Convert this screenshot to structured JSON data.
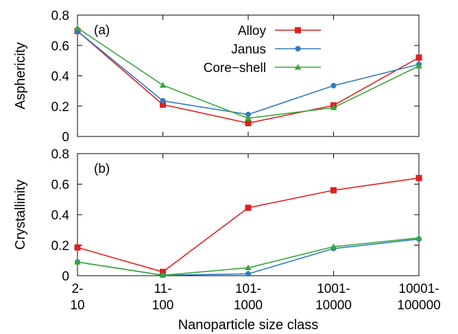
{
  "chart_data": [
    {
      "type": "line",
      "panel_label": "(a)",
      "ylabel": "Asphericity",
      "xlabel": "",
      "ylim": [
        0,
        0.8
      ],
      "yticks": [
        0,
        0.2,
        0.4,
        0.6,
        0.8
      ],
      "ytick_labels": [
        "0",
        "0.2",
        "0.4",
        "0.6",
        "0.8"
      ],
      "categories": [
        "2-\n10",
        "11-\n100",
        "101-\n1000",
        "1001-\n10000",
        "10001-\n100000"
      ],
      "legend": "top-center",
      "grid": false,
      "series": [
        {
          "name": "Alloy",
          "color": "#e0201f",
          "marker": "square",
          "values": [
            0.695,
            0.21,
            0.088,
            0.205,
            0.52
          ]
        },
        {
          "name": "Janus",
          "color": "#2f7bbd",
          "marker": "circle",
          "values": [
            0.695,
            0.235,
            0.145,
            0.335,
            0.475
          ]
        },
        {
          "name": "Core−shell",
          "color": "#3aa63a",
          "marker": "triangle",
          "values": [
            0.715,
            0.338,
            0.12,
            0.19,
            0.465
          ]
        }
      ]
    },
    {
      "type": "line",
      "panel_label": "(b)",
      "ylabel": "Crystallinity",
      "xlabel": "Nanoparticle size class",
      "ylim": [
        0,
        0.8
      ],
      "yticks": [
        0,
        0.2,
        0.4,
        0.6,
        0.8
      ],
      "ytick_labels": [
        "0",
        "0.2",
        "0.4",
        "0.6",
        "0.8"
      ],
      "categories": [
        "2-\n10",
        "11-\n100",
        "101-\n1000",
        "1001-\n10000",
        "10001-\n100000"
      ],
      "grid": false,
      "series": [
        {
          "name": "Alloy",
          "color": "#e0201f",
          "marker": "square",
          "values": [
            0.185,
            0.025,
            0.445,
            0.56,
            0.64
          ]
        },
        {
          "name": "Janus",
          "color": "#2f7bbd",
          "marker": "circle",
          "values": [
            0.09,
            0.003,
            0.012,
            0.178,
            0.24
          ]
        },
        {
          "name": "Core−shell",
          "color": "#3aa63a",
          "marker": "triangle",
          "values": [
            0.09,
            0.003,
            0.052,
            0.19,
            0.248
          ]
        }
      ]
    }
  ]
}
